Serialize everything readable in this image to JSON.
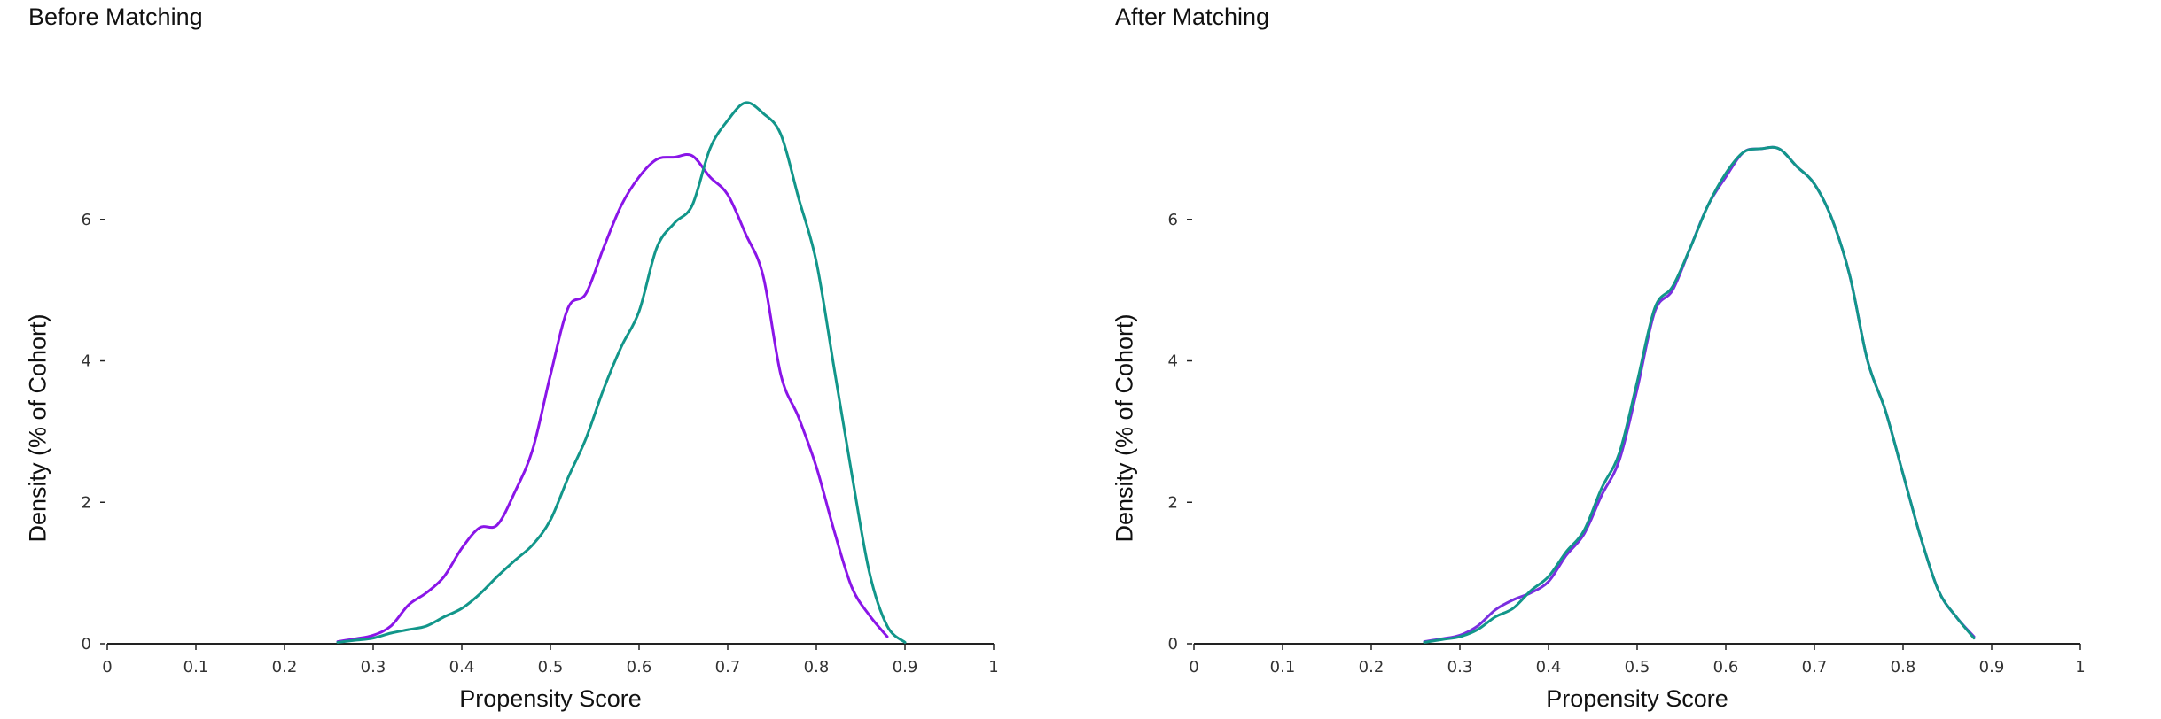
{
  "chart_data": [
    {
      "type": "line",
      "title": "Before Matching",
      "xlabel": "Propensity Score",
      "ylabel": "Density (% of Cohort)",
      "xlim": [
        0,
        1
      ],
      "ylim": [
        0,
        7.6
      ],
      "x_ticks": [
        "0",
        "0.1",
        "0.2",
        "0.3",
        "0.4",
        "0.5",
        "0.6",
        "0.7",
        "0.8",
        "0.9",
        "1"
      ],
      "y_ticks": [
        "0",
        "2",
        "4",
        "6"
      ],
      "grid": false,
      "series": [
        {
          "color": "#8a15e8",
          "points": [
            [
              0.26,
              0.03
            ],
            [
              0.28,
              0.07
            ],
            [
              0.3,
              0.12
            ],
            [
              0.32,
              0.25
            ],
            [
              0.34,
              0.55
            ],
            [
              0.36,
              0.72
            ],
            [
              0.38,
              0.95
            ],
            [
              0.4,
              1.35
            ],
            [
              0.42,
              1.64
            ],
            [
              0.44,
              1.68
            ],
            [
              0.46,
              2.15
            ],
            [
              0.48,
              2.75
            ],
            [
              0.5,
              3.8
            ],
            [
              0.52,
              4.75
            ],
            [
              0.54,
              4.95
            ],
            [
              0.56,
              5.6
            ],
            [
              0.58,
              6.2
            ],
            [
              0.6,
              6.6
            ],
            [
              0.62,
              6.85
            ],
            [
              0.64,
              6.88
            ],
            [
              0.66,
              6.9
            ],
            [
              0.68,
              6.6
            ],
            [
              0.7,
              6.35
            ],
            [
              0.72,
              5.8
            ],
            [
              0.74,
              5.2
            ],
            [
              0.76,
              3.8
            ],
            [
              0.78,
              3.2
            ],
            [
              0.8,
              2.5
            ],
            [
              0.82,
              1.6
            ],
            [
              0.84,
              0.8
            ],
            [
              0.86,
              0.4
            ],
            [
              0.88,
              0.1
            ]
          ]
        },
        {
          "color": "#12968a",
          "points": [
            [
              0.26,
              0.02
            ],
            [
              0.28,
              0.05
            ],
            [
              0.3,
              0.08
            ],
            [
              0.32,
              0.15
            ],
            [
              0.34,
              0.2
            ],
            [
              0.36,
              0.25
            ],
            [
              0.38,
              0.38
            ],
            [
              0.4,
              0.5
            ],
            [
              0.42,
              0.7
            ],
            [
              0.44,
              0.95
            ],
            [
              0.46,
              1.18
            ],
            [
              0.48,
              1.4
            ],
            [
              0.5,
              1.75
            ],
            [
              0.52,
              2.35
            ],
            [
              0.54,
              2.9
            ],
            [
              0.56,
              3.6
            ],
            [
              0.58,
              4.2
            ],
            [
              0.6,
              4.7
            ],
            [
              0.62,
              5.6
            ],
            [
              0.64,
              5.95
            ],
            [
              0.66,
              6.2
            ],
            [
              0.68,
              7.0
            ],
            [
              0.7,
              7.4
            ],
            [
              0.72,
              7.65
            ],
            [
              0.74,
              7.5
            ],
            [
              0.76,
              7.2
            ],
            [
              0.78,
              6.3
            ],
            [
              0.8,
              5.4
            ],
            [
              0.82,
              3.9
            ],
            [
              0.84,
              2.4
            ],
            [
              0.86,
              1.0
            ],
            [
              0.88,
              0.25
            ],
            [
              0.9,
              0.02
            ]
          ]
        }
      ]
    },
    {
      "type": "line",
      "title": "After Matching",
      "xlabel": "Propensity Score",
      "ylabel": "Density (% of Cohort)",
      "xlim": [
        0,
        1
      ],
      "ylim": [
        0,
        7.6
      ],
      "x_ticks": [
        "0",
        "0.1",
        "0.2",
        "0.3",
        "0.4",
        "0.5",
        "0.6",
        "0.7",
        "0.8",
        "0.9",
        "1"
      ],
      "y_ticks": [
        "0",
        "2",
        "4",
        "6"
      ],
      "grid": false,
      "series": [
        {
          "color": "#7a2fe0",
          "points": [
            [
              0.26,
              0.03
            ],
            [
              0.28,
              0.07
            ],
            [
              0.3,
              0.12
            ],
            [
              0.32,
              0.25
            ],
            [
              0.34,
              0.48
            ],
            [
              0.36,
              0.62
            ],
            [
              0.38,
              0.72
            ],
            [
              0.4,
              0.88
            ],
            [
              0.42,
              1.25
            ],
            [
              0.44,
              1.55
            ],
            [
              0.46,
              2.1
            ],
            [
              0.48,
              2.6
            ],
            [
              0.5,
              3.6
            ],
            [
              0.52,
              4.7
            ],
            [
              0.54,
              5.0
            ],
            [
              0.56,
              5.6
            ],
            [
              0.58,
              6.2
            ],
            [
              0.6,
              6.6
            ],
            [
              0.62,
              6.95
            ],
            [
              0.64,
              7.0
            ],
            [
              0.66,
              7.0
            ],
            [
              0.68,
              6.75
            ],
            [
              0.7,
              6.5
            ],
            [
              0.72,
              6.0
            ],
            [
              0.74,
              5.2
            ],
            [
              0.76,
              4.0
            ],
            [
              0.78,
              3.3
            ],
            [
              0.8,
              2.4
            ],
            [
              0.82,
              1.5
            ],
            [
              0.84,
              0.75
            ],
            [
              0.86,
              0.38
            ],
            [
              0.88,
              0.1
            ]
          ]
        },
        {
          "color": "#12968a",
          "points": [
            [
              0.26,
              0.02
            ],
            [
              0.28,
              0.06
            ],
            [
              0.3,
              0.1
            ],
            [
              0.32,
              0.2
            ],
            [
              0.34,
              0.38
            ],
            [
              0.36,
              0.5
            ],
            [
              0.38,
              0.75
            ],
            [
              0.4,
              0.95
            ],
            [
              0.42,
              1.3
            ],
            [
              0.44,
              1.6
            ],
            [
              0.46,
              2.2
            ],
            [
              0.48,
              2.7
            ],
            [
              0.5,
              3.7
            ],
            [
              0.52,
              4.75
            ],
            [
              0.54,
              5.05
            ],
            [
              0.56,
              5.6
            ],
            [
              0.58,
              6.2
            ],
            [
              0.6,
              6.65
            ],
            [
              0.62,
              6.95
            ],
            [
              0.64,
              7.0
            ],
            [
              0.66,
              7.0
            ],
            [
              0.68,
              6.75
            ],
            [
              0.7,
              6.5
            ],
            [
              0.72,
              6.0
            ],
            [
              0.74,
              5.2
            ],
            [
              0.76,
              4.0
            ],
            [
              0.78,
              3.3
            ],
            [
              0.8,
              2.4
            ],
            [
              0.82,
              1.5
            ],
            [
              0.84,
              0.75
            ],
            [
              0.86,
              0.38
            ],
            [
              0.88,
              0.08
            ]
          ]
        }
      ]
    }
  ]
}
